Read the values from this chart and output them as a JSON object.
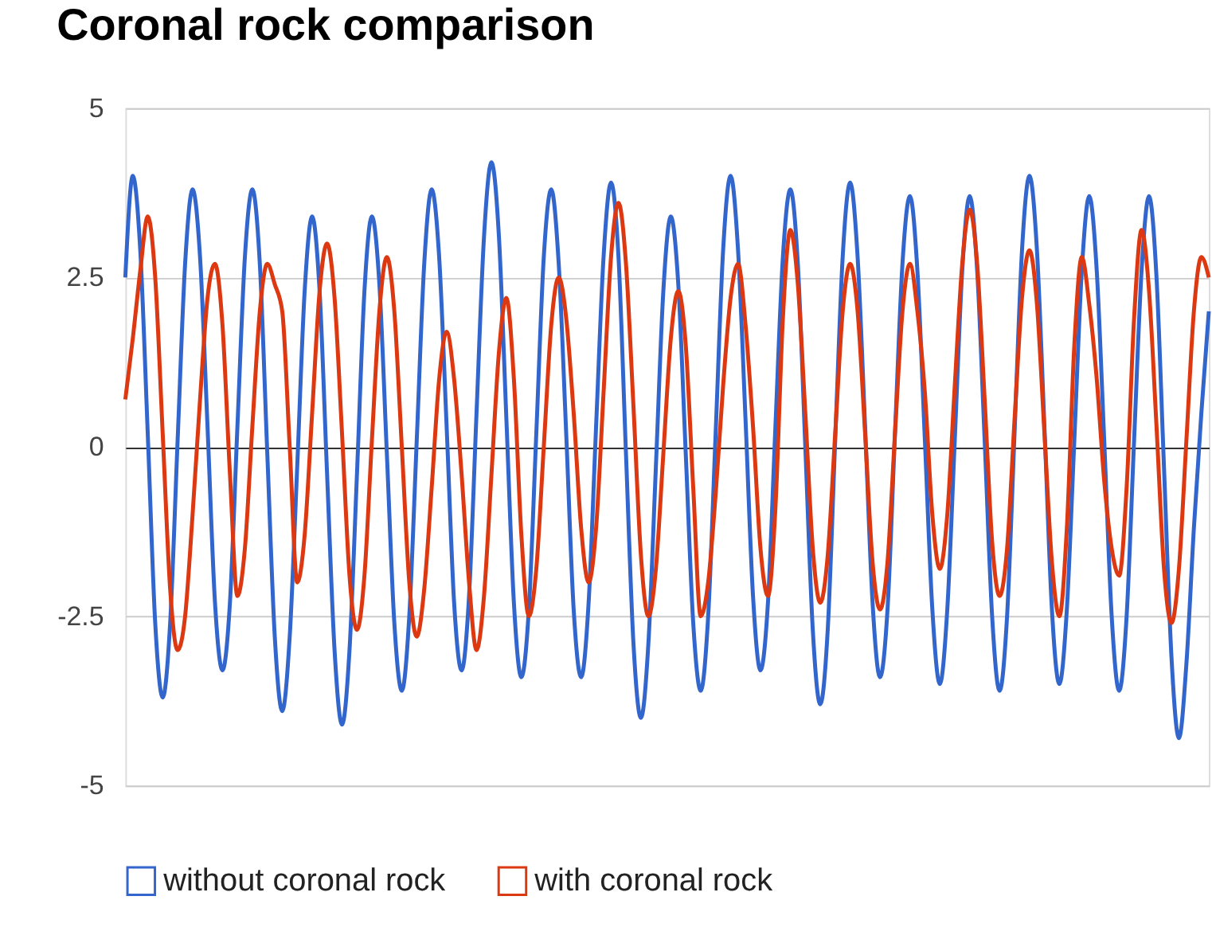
{
  "chart_data": {
    "type": "line",
    "title": "Coronal rock comparison",
    "categories": [
      null,
      null,
      null,
      null,
      null,
      null,
      null,
      null,
      null,
      null,
      null,
      null,
      null,
      null,
      null,
      null,
      null,
      null,
      null,
      null,
      null,
      null,
      null,
      null,
      null,
      null,
      null,
      null,
      null,
      null,
      null,
      null,
      null,
      null,
      null,
      null,
      null,
      null,
      null,
      null,
      null,
      null,
      null,
      null,
      null,
      null,
      null,
      null,
      null,
      null,
      null,
      null,
      null,
      null,
      null,
      null,
      null,
      null,
      null,
      null,
      null,
      null,
      null,
      null,
      null,
      null,
      null,
      null,
      null,
      null,
      null,
      null,
      null,
      null,
      null,
      null,
      null,
      null,
      null,
      null,
      null,
      null,
      null,
      null,
      null,
      null,
      null,
      null,
      null,
      null,
      null,
      null,
      null,
      null,
      null,
      null,
      null,
      null,
      null,
      null,
      null,
      null,
      null,
      null,
      null,
      null,
      null,
      null,
      null,
      null,
      null,
      null,
      null,
      null,
      null,
      null,
      null,
      null,
      null,
      null,
      null,
      null,
      null,
      null,
      null,
      null,
      null,
      null,
      null,
      null,
      null,
      null,
      null,
      null,
      null,
      null,
      null,
      null,
      null,
      null,
      null,
      null,
      null,
      null,
      null,
      null
    ],
    "ylim": [
      -5,
      5
    ],
    "yticks": [
      -5,
      -2.5,
      0,
      2.5,
      5
    ],
    "tick_labels": "y",
    "grid": "y",
    "legend": "bottom",
    "series": [
      {
        "name": "without coronal rock",
        "color": "#3366cc",
        "values": [
          2.5,
          4.0,
          2.9,
          0.2,
          -2.6,
          -3.7,
          -2.6,
          0.1,
          2.7,
          3.8,
          2.8,
          0.3,
          -2.3,
          -3.3,
          -2.3,
          0.3,
          2.8,
          3.8,
          2.7,
          -0.1,
          -2.8,
          -3.9,
          -2.8,
          -0.3,
          2.3,
          3.4,
          2.3,
          -0.4,
          -3.0,
          -4.1,
          -3.0,
          -0.4,
          2.3,
          3.4,
          2.4,
          -0.1,
          -2.6,
          -3.6,
          -2.5,
          0.1,
          2.7,
          3.8,
          2.8,
          0.3,
          -2.3,
          -3.3,
          -2.2,
          0.5,
          3.1,
          4.2,
          3.1,
          0.4,
          -2.3,
          -3.4,
          -2.4,
          0.2,
          2.8,
          3.8,
          2.7,
          0.2,
          -2.4,
          -3.4,
          -2.3,
          0.3,
          2.8,
          3.9,
          2.8,
          -0.1,
          -2.9,
          -4.0,
          -2.9,
          -0.3,
          2.3,
          3.4,
          2.4,
          -0.1,
          -2.6,
          -3.6,
          -2.5,
          0.2,
          2.9,
          4.0,
          2.9,
          0.4,
          -2.2,
          -3.3,
          -2.3,
          0.3,
          2.8,
          3.8,
          2.7,
          0.0,
          -2.7,
          -3.8,
          -2.7,
          0.1,
          2.8,
          3.9,
          2.8,
          0.3,
          -2.3,
          -3.4,
          -2.4,
          0.2,
          2.7,
          3.7,
          2.6,
          0.1,
          -2.4,
          -3.5,
          -2.4,
          0.1,
          2.6,
          3.7,
          2.6,
          0.1,
          -2.5,
          -3.6,
          -2.5,
          0.2,
          2.9,
          4.0,
          2.9,
          0.3,
          -2.4,
          -3.5,
          -2.4,
          0.1,
          2.6,
          3.7,
          2.6,
          0.1,
          -2.5,
          -3.6,
          -2.5,
          0.1,
          2.6,
          3.7,
          2.5,
          -0.3,
          -3.1,
          -4.3,
          -3.2,
          -1.2,
          0.5,
          2.0
        ]
      },
      {
        "name": "with coronal rock",
        "color": "#dc3912",
        "values": [
          0.7,
          1.6,
          2.6,
          3.4,
          2.5,
          0.2,
          -2.1,
          -3.0,
          -2.5,
          -1.0,
          0.7,
          2.2,
          2.7,
          1.8,
          -0.4,
          -2.2,
          -1.5,
          0.3,
          2.0,
          2.7,
          2.4,
          2.0,
          0.0,
          -2.0,
          -1.3,
          0.5,
          2.3,
          3.0,
          2.2,
          0.2,
          -1.9,
          -2.7,
          -1.9,
          0.1,
          2.0,
          2.8,
          2.0,
          0.0,
          -2.0,
          -2.8,
          -2.1,
          -0.6,
          1.0,
          1.7,
          1.0,
          -0.4,
          -2.0,
          -3.0,
          -2.2,
          -0.4,
          1.4,
          2.2,
          1.0,
          -1.3,
          -2.5,
          -1.8,
          0.0,
          1.8,
          2.5,
          1.9,
          0.5,
          -1.2,
          -2.0,
          -1.2,
          0.8,
          2.8,
          3.6,
          2.7,
          0.6,
          -1.6,
          -2.5,
          -1.8,
          -0.1,
          1.6,
          2.3,
          1.5,
          -0.6,
          -2.5,
          -2.0,
          -0.7,
          0.9,
          2.2,
          2.7,
          1.8,
          0.3,
          -1.5,
          -2.2,
          -0.9,
          1.9,
          3.2,
          2.4,
          0.5,
          -1.5,
          -2.3,
          -1.6,
          0.2,
          2.0,
          2.7,
          2.0,
          0.2,
          -1.7,
          -2.4,
          -1.7,
          0.2,
          2.0,
          2.7,
          2.0,
          0.8,
          -1.0,
          -1.8,
          -1.0,
          0.9,
          2.7,
          3.5,
          2.7,
          0.7,
          -1.4,
          -2.2,
          -1.5,
          0.4,
          2.2,
          2.9,
          2.1,
          0.2,
          -1.7,
          -2.5,
          -1.2,
          1.5,
          2.8,
          2.1,
          1.0,
          -0.5,
          -1.5,
          -1.9,
          -0.6,
          1.9,
          3.2,
          2.3,
          0.3,
          -1.8,
          -2.6,
          -1.8,
          0.1,
          2.0,
          2.8,
          2.5
        ]
      }
    ]
  }
}
